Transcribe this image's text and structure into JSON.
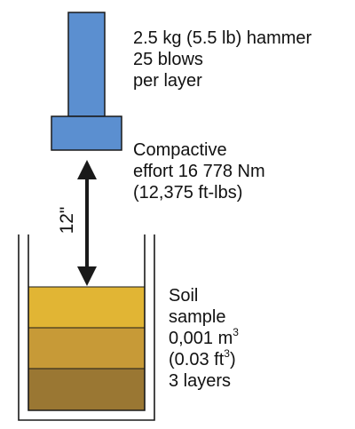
{
  "colors": {
    "hammer_fill": "#5b8fd0",
    "hammer_stroke": "#1a1a1a",
    "layer_top": "#e1b534",
    "layer_middle": "#c79a37",
    "layer_bottom": "#9a7733",
    "mold_line": "#1a1a1a",
    "text": "#111111"
  },
  "hammer": {
    "lines": [
      "2.5 kg (5.5 lb) hammer",
      "25 blows",
      "per layer"
    ]
  },
  "effort": {
    "lines": [
      "Compactive",
      "effort 16 778 Nm",
      "(12,375 ft-lbs)"
    ]
  },
  "drop_height": "12\"",
  "soil": {
    "line1": "Soil",
    "line2": "sample",
    "line3_main": "0,001 m",
    "line3_sup": "3",
    "line4_open": "(0.03 ft",
    "line4_sup": "3",
    "line4_close": ")",
    "line5": "3 layers"
  }
}
